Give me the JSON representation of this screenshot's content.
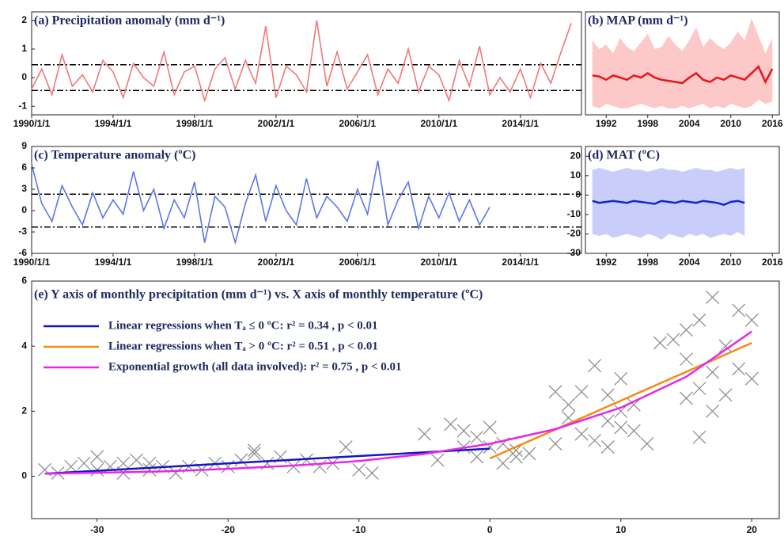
{
  "chart_data": [
    {
      "type": "line",
      "title": "(a) Precipitation anomaly (mm d⁻¹)",
      "x": [
        "1990/1/1",
        "1990/7/1",
        "1991/1/1",
        "1991/7/1",
        "1992/1/1",
        "1992/7/1",
        "1993/1/1",
        "1993/7/1",
        "1994/1/1",
        "1994/7/1",
        "1995/1/1",
        "1995/7/1",
        "1996/1/1",
        "1996/7/1",
        "1997/1/1",
        "1997/7/1",
        "1998/1/1",
        "1998/7/1",
        "1999/1/1",
        "1999/7/1",
        "2000/1/1",
        "2000/7/1",
        "2001/1/1",
        "2001/7/1",
        "2002/1/1",
        "2002/7/1",
        "2003/1/1",
        "2003/7/1",
        "2004/1/1",
        "2004/7/1",
        "2005/1/1",
        "2005/7/1",
        "2006/1/1",
        "2006/7/1",
        "2007/1/1",
        "2007/7/1",
        "2008/1/1",
        "2008/7/1",
        "2009/1/1",
        "2009/7/1",
        "2010/1/1",
        "2010/7/1",
        "2011/1/1",
        "2011/7/1",
        "2012/1/1",
        "2012/7/1",
        "2013/1/1",
        "2013/7/1",
        "2014/1/1",
        "2014/7/1",
        "2015/1/1",
        "2015/7/1",
        "2016/1/1",
        "2016/7/1"
      ],
      "series": [
        {
          "color": "#f07878",
          "values": [
            -0.4,
            0.3,
            -0.6,
            0.8,
            -0.3,
            0.1,
            -0.5,
            0.6,
            0.2,
            -0.7,
            0.5,
            0.0,
            -0.3,
            0.9,
            -0.6,
            0.2,
            0.4,
            -0.8,
            0.3,
            0.7,
            -0.4,
            0.6,
            -0.2,
            1.8,
            -0.7,
            0.4,
            0.1,
            -0.5,
            2.0,
            -0.3,
            0.9,
            -0.4,
            0.2,
            0.8,
            -0.6,
            0.3,
            -0.2,
            1.0,
            -0.5,
            0.4,
            0.1,
            -0.8,
            0.6,
            -0.3,
            1.1,
            -0.6,
            0.0,
            -0.5,
            0.3,
            -0.7,
            0.5,
            -0.2,
            0.9,
            1.9
          ]
        }
      ],
      "reference_lines": [
        0.45,
        -0.45
      ],
      "xlim": [
        "1990/1/1",
        "2017/1/1"
      ],
      "xticks": [
        "1990/1/1",
        "1994/1/1",
        "1998/1/1",
        "2002/1/1",
        "2006/1/1",
        "2010/1/1",
        "2014/1/1"
      ],
      "ylim": [
        -1.3,
        2.3
      ],
      "yticks": [
        -1,
        0,
        1,
        2
      ]
    },
    {
      "type": "line",
      "title": "(b) MAP (mm d⁻¹)",
      "x": [
        1990,
        1991,
        1992,
        1993,
        1994,
        1995,
        1996,
        1997,
        1998,
        1999,
        2000,
        2001,
        2002,
        2003,
        2004,
        2005,
        2006,
        2007,
        2008,
        2009,
        2010,
        2011,
        2012,
        2013,
        2014,
        2015,
        2016
      ],
      "series": [
        {
          "color": "#e8141a",
          "band_color": "#fcc8c8",
          "values": [
            1.6,
            1.55,
            1.4,
            1.6,
            1.5,
            1.4,
            1.6,
            1.5,
            1.7,
            1.5,
            1.4,
            1.35,
            1.3,
            1.25,
            1.5,
            1.7,
            1.4,
            1.3,
            1.5,
            1.4,
            1.6,
            1.5,
            1.4,
            1.7,
            2.0,
            1.3,
            1.9
          ],
          "band_low": [
            0.2,
            0.1,
            0.3,
            0.2,
            0.1,
            0.1,
            0.2,
            0.3,
            0.2,
            0.1,
            0.2,
            0.1,
            0.1,
            0.2,
            0.1,
            0.2,
            0.3,
            0.1,
            0.2,
            0.1,
            0.3,
            0.2,
            0.1,
            0.2,
            0.5,
            0.3,
            0.4
          ],
          "band_high": [
            3.2,
            2.8,
            3.0,
            2.6,
            3.3,
            2.9,
            2.7,
            3.1,
            3.5,
            2.8,
            2.9,
            3.4,
            3.0,
            2.7,
            3.2,
            3.8,
            2.9,
            3.3,
            3.0,
            2.8,
            3.1,
            3.6,
            3.2,
            4.2,
            3.4,
            2.6,
            3.3
          ]
        }
      ],
      "xlim": [
        1989,
        2017
      ],
      "xticks": [
        1992,
        1998,
        2004,
        2010,
        2016
      ],
      "ylim": [
        -0.2,
        4.5
      ]
    },
    {
      "type": "line",
      "title": "(c) Temperature anomaly (ºC)",
      "x": [
        "1990/1/1",
        "1990/7/1",
        "1991/1/1",
        "1991/7/1",
        "1992/1/1",
        "1992/7/1",
        "1993/1/1",
        "1993/7/1",
        "1994/1/1",
        "1994/7/1",
        "1995/1/1",
        "1995/7/1",
        "1996/1/1",
        "1996/7/1",
        "1997/1/1",
        "1997/7/1",
        "1998/1/1",
        "1998/7/1",
        "1999/1/1",
        "1999/7/1",
        "2000/1/1",
        "2000/7/1",
        "2001/1/1",
        "2001/7/1",
        "2002/1/1",
        "2002/7/1",
        "2003/1/1",
        "2003/7/1",
        "2004/1/1",
        "2004/7/1",
        "2005/1/1",
        "2005/7/1",
        "2006/1/1",
        "2006/7/1",
        "2007/1/1",
        "2007/7/1",
        "2008/1/1",
        "2008/7/1",
        "2009/1/1",
        "2009/7/1",
        "2010/1/1",
        "2010/7/1",
        "2011/1/1",
        "2011/7/1",
        "2012/1/1",
        "2012/7/1"
      ],
      "series": [
        {
          "color": "#5a78e6",
          "values": [
            6.5,
            1.0,
            -1.5,
            3.5,
            0.5,
            -2.0,
            2.5,
            -1.0,
            1.5,
            -0.5,
            5.5,
            0.0,
            3.0,
            -2.5,
            1.5,
            -1.0,
            4.0,
            -4.5,
            2.0,
            0.5,
            -4.5,
            1.0,
            5.0,
            -1.5,
            3.5,
            0.0,
            -2.0,
            4.5,
            -1.0,
            2.0,
            0.5,
            -1.5,
            3.0,
            -0.5,
            7.0,
            -2.0,
            1.5,
            4.0,
            -2.5,
            2.0,
            -1.0,
            2.5,
            -1.5,
            1.5,
            -2.0,
            0.5
          ]
        }
      ],
      "reference_lines": [
        2.3,
        -2.3
      ],
      "xlim": [
        "1990/1/1",
        "2017/1/1"
      ],
      "xticks": [
        "1990/1/1",
        "1994/1/1",
        "1998/1/1",
        "2002/1/1",
        "2006/1/1",
        "2010/1/1",
        "2014/1/1"
      ],
      "ylim": [
        -6,
        9
      ],
      "yticks": [
        -6,
        -3,
        0,
        3,
        6,
        9
      ]
    },
    {
      "type": "line",
      "title": "(d) MAT (ºC)",
      "x": [
        1990,
        1991,
        1992,
        1993,
        1994,
        1995,
        1996,
        1997,
        1998,
        1999,
        2000,
        2001,
        2002,
        2003,
        2004,
        2005,
        2006,
        2007,
        2008,
        2009,
        2010,
        2011,
        2012
      ],
      "series": [
        {
          "color": "#1428c8",
          "band_color": "#c8cdfa",
          "values": [
            -3,
            -4,
            -3.5,
            -3,
            -3.5,
            -4,
            -3,
            -3.5,
            -4,
            -4.5,
            -3,
            -3.5,
            -4,
            -3,
            -3.5,
            -4,
            -3,
            -3.5,
            -4,
            -5,
            -3.5,
            -3,
            -4
          ],
          "band_low": [
            -20,
            -21,
            -20,
            -22,
            -21,
            -20,
            -21,
            -22,
            -20,
            -21,
            -23,
            -20,
            -21,
            -22,
            -20,
            -21,
            -20,
            -22,
            -21,
            -20,
            -21,
            -19,
            -21
          ],
          "band_high": [
            13,
            14,
            13,
            12,
            13,
            14,
            13,
            13,
            12,
            13,
            14,
            13,
            13,
            12,
            13,
            14,
            13,
            13,
            12,
            13,
            14,
            13,
            14
          ]
        }
      ],
      "xlim": [
        1989,
        2017
      ],
      "xticks": [
        1992,
        1998,
        2004,
        2010,
        2016
      ],
      "ylim": [
        -30,
        25
      ],
      "yticks": [
        -30,
        -20,
        -10,
        0,
        10,
        20
      ]
    },
    {
      "type": "scatter",
      "title": "(e) Y axis of monthly precipitation (mm d⁻¹) vs. X axis of monthly temperature (ºC)",
      "points": {
        "color": "#888888",
        "x": [
          -34,
          -33,
          -32,
          -31,
          -30,
          -30,
          -29,
          -28,
          -28,
          -27,
          -26,
          -26,
          -25,
          -24,
          -23,
          -22,
          -21,
          -20,
          -19,
          -18,
          -18,
          -17,
          -16,
          -15,
          -14,
          -13,
          -12,
          -11,
          -10,
          -9,
          -5,
          -4,
          -3,
          -2,
          -2,
          -1,
          -1,
          0,
          0,
          1,
          1,
          2,
          2,
          3,
          5,
          6,
          6,
          7,
          7,
          8,
          8,
          9,
          9,
          9,
          10,
          10,
          11,
          11,
          12,
          14,
          15,
          15,
          16,
          16,
          16,
          17,
          17,
          18,
          18,
          19,
          19,
          20,
          20,
          15,
          13,
          17,
          5,
          10
        ],
        "values": [
          0.2,
          0.1,
          0.3,
          0.4,
          0.2,
          0.6,
          0.3,
          0.4,
          0.1,
          0.5,
          0.2,
          0.4,
          0.3,
          0.1,
          0.3,
          0.2,
          0.4,
          0.3,
          0.5,
          0.7,
          0.8,
          0.4,
          0.6,
          0.3,
          0.5,
          0.3,
          0.4,
          0.9,
          0.2,
          0.1,
          1.3,
          0.5,
          1.6,
          0.9,
          1.4,
          0.6,
          1.2,
          0.9,
          1.5,
          0.4,
          1.0,
          0.8,
          0.6,
          0.7,
          1.0,
          1.8,
          2.2,
          1.3,
          2.6,
          1.1,
          3.4,
          1.7,
          2.5,
          0.9,
          2.0,
          3.0,
          1.4,
          2.2,
          1.0,
          4.2,
          3.6,
          2.4,
          4.8,
          2.7,
          1.2,
          5.5,
          3.2,
          2.5,
          4.0,
          3.3,
          5.1,
          4.8,
          3.0,
          4.5,
          4.1,
          2.0,
          2.6,
          1.5
        ]
      },
      "series": [
        {
          "name": "Linear regressions when Tₐ ≤ 0 ºC: r² = 0.34 , p < 0.01",
          "color": "#1414c8",
          "x": [
            -34,
            0
          ],
          "values": [
            0.08,
            0.85
          ]
        },
        {
          "name": "Linear regressions when Tₐ > 0 ºC: r² = 0.51 , p < 0.01",
          "color": "#f08c14",
          "x": [
            0,
            20
          ],
          "values": [
            0.55,
            4.1
          ]
        },
        {
          "name": "Exponential growth (all data involved): r² = 0.75 , p < 0.01",
          "color": "#e628e6",
          "x": [
            -34,
            -30,
            -25,
            -20,
            -15,
            -10,
            -5,
            0,
            5,
            10,
            15,
            20
          ],
          "values": [
            0.08,
            0.11,
            0.15,
            0.23,
            0.33,
            0.47,
            0.69,
            1.0,
            1.45,
            2.11,
            3.06,
            4.45
          ]
        }
      ],
      "legend": "upper left",
      "xlim": [
        -35,
        22.1
      ],
      "xticks": [
        -30,
        -20,
        -10,
        0,
        10,
        20
      ],
      "ylim": [
        -1.3,
        6
      ],
      "yticks": [
        0,
        2,
        4,
        6
      ]
    }
  ]
}
